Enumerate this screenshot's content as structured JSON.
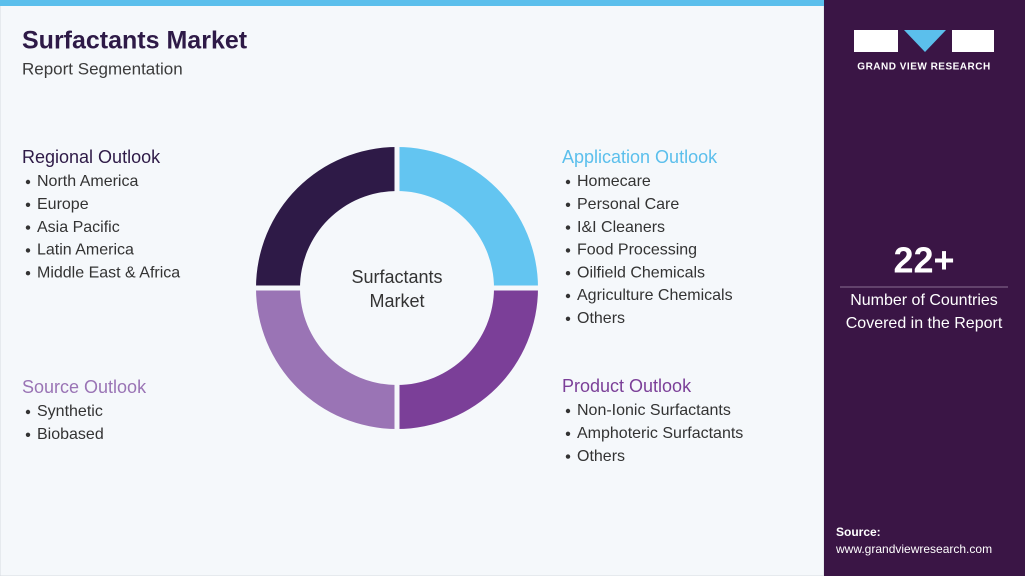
{
  "header": {
    "title": "Surfactants Market",
    "subtitle": "Report Segmentation"
  },
  "center_label": [
    "Surfactants",
    "Market"
  ],
  "segments": [
    {
      "title": "Regional Outlook",
      "color": "#2e1a47",
      "items": [
        "North America",
        "Europe",
        "Asia Pacific",
        "Latin America",
        "Middle East & Africa"
      ]
    },
    {
      "title": "Application Outlook",
      "color": "#5bbfec",
      "items": [
        "Homecare",
        "Personal Care",
        "I&I Cleaners",
        "Food Processing",
        "Oilfield Chemicals",
        "Agriculture Chemicals",
        "Others"
      ]
    },
    {
      "title": "Source Outlook",
      "color": "#9a74b5",
      "items": [
        "Synthetic",
        "Biobased"
      ]
    },
    {
      "title": "Product Outlook",
      "color": "#7b3f98",
      "items": [
        "Non-Ionic Surfactants",
        "Amphoteric Surfactants",
        "Others"
      ]
    }
  ],
  "sidebar": {
    "brand": "GRAND VIEW RESEARCH",
    "stat": "22+",
    "stat_label": [
      "Number of Countries",
      "Covered in the Report"
    ],
    "source_label": "Source:",
    "source_url": "www.grandviewresearch.com"
  }
}
